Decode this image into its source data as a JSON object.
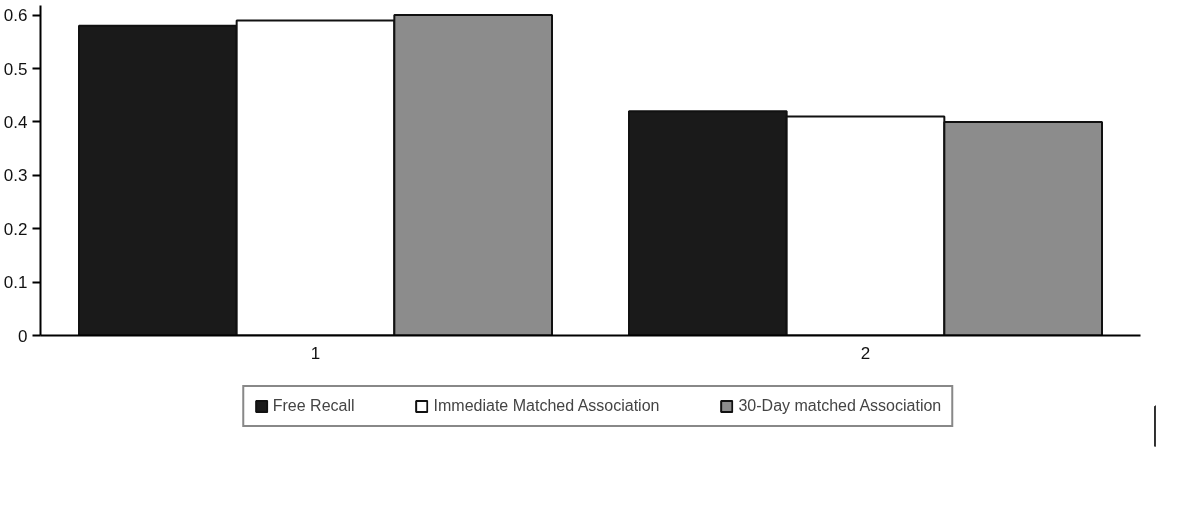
{
  "chart_data": {
    "type": "bar",
    "categories": [
      "1",
      "2"
    ],
    "series": [
      {
        "name": "Free Recall",
        "color": "#1a1a1a",
        "values": [
          0.58,
          0.42
        ]
      },
      {
        "name": "Immediate Matched Association",
        "color": "#ffffff",
        "values": [
          0.59,
          0.41
        ]
      },
      {
        "name": "30-Day matched Association",
        "color": "#8c8c8c",
        "values": [
          0.6,
          0.4
        ]
      }
    ],
    "ylim": [
      0,
      0.6
    ],
    "yticks": [
      0,
      0.1,
      0.2,
      0.3,
      0.4,
      0.5,
      0.6
    ],
    "grid": false,
    "legend": "bottom"
  }
}
